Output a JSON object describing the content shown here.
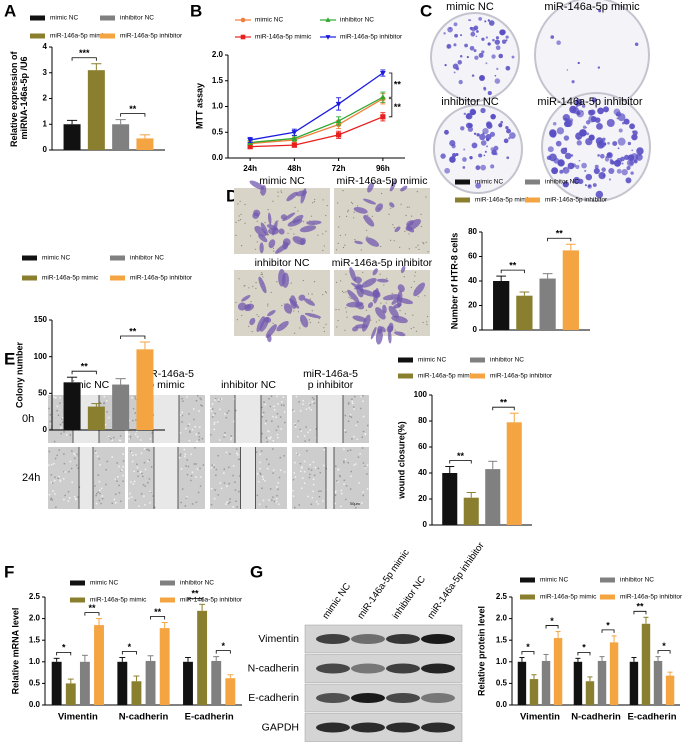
{
  "panel_labels": [
    "A",
    "B",
    "C",
    "D",
    "E",
    "F",
    "G"
  ],
  "chart_data": [
    {
      "type": "bar",
      "ylabel": "Relative expression of miRNA-146a-5p /U6",
      "categories": [
        null
      ],
      "series": [
        {
          "name": "mimic NC",
          "color": "#111111",
          "values": [
            1.0
          ],
          "errors": [
            0.15
          ]
        },
        {
          "name": "miR-146a-5p mimic",
          "color": "#8a7f2f",
          "values": [
            3.1
          ],
          "errors": [
            0.25
          ]
        },
        {
          "name": "inhibitor NC",
          "color": "#808080",
          "values": [
            1.0
          ],
          "errors": [
            0.18
          ]
        },
        {
          "name": "miR-146a-5p inhibitor",
          "color": "#f5a442",
          "values": [
            0.45
          ],
          "errors": [
            0.14
          ]
        }
      ],
      "ylim": [
        0,
        4
      ],
      "yticks": [
        0,
        1,
        2,
        3,
        4
      ],
      "annotations": [
        "***",
        "**"
      ],
      "legend": "top"
    },
    {
      "type": "bar",
      "ylabel": "Colony number",
      "categories": [
        null
      ],
      "series": [
        {
          "name": "mimic NC",
          "color": "#111111",
          "values": [
            65
          ],
          "errors": [
            7
          ]
        },
        {
          "name": "miR-146a-5p mimic",
          "color": "#8a7f2f",
          "values": [
            32
          ],
          "errors": [
            4
          ]
        },
        {
          "name": "inhibitor NC",
          "color": "#808080",
          "values": [
            62
          ],
          "errors": [
            8
          ]
        },
        {
          "name": "miR-146a-5p inhibitor",
          "color": "#f5a442",
          "values": [
            110
          ],
          "errors": [
            10
          ]
        }
      ],
      "ylim": [
        0,
        150
      ],
      "yticks": [
        0,
        50,
        100,
        150
      ],
      "annotations": [
        "**",
        "**"
      ],
      "legend": "top"
    },
    {
      "type": "line",
      "ylabel": "MTT assay",
      "categories": [
        "24h",
        "48h",
        "72h",
        "96h"
      ],
      "series": [
        {
          "name": "mimic NC",
          "color": "#f07d3a",
          "marker": "circle",
          "values": [
            0.28,
            0.35,
            0.65,
            1.15
          ],
          "errors": [
            0.04,
            0.05,
            0.08,
            0.1
          ]
        },
        {
          "name": "miR-146a-5p mimic",
          "color": "#e8201d",
          "marker": "square",
          "values": [
            0.22,
            0.25,
            0.45,
            0.8
          ],
          "errors": [
            0.03,
            0.04,
            0.07,
            0.08
          ]
        },
        {
          "name": "inhibitor NC",
          "color": "#2fa82f",
          "marker": "triangle",
          "values": [
            0.3,
            0.38,
            0.72,
            1.18
          ],
          "errors": [
            0.04,
            0.05,
            0.08,
            0.1
          ]
        },
        {
          "name": "miR-146a-5p inhibitor",
          "color": "#1c1ce0",
          "marker": "triangle-down",
          "values": [
            0.35,
            0.5,
            1.05,
            1.65
          ],
          "errors": [
            0.05,
            0.06,
            0.12,
            0.06
          ]
        }
      ],
      "ylim": [
        0,
        2
      ],
      "yticks": [
        {
          "value": 0,
          "label": "0.0"
        },
        0.5,
        {
          "value": 1,
          "label": "1.0"
        },
        1.5,
        {
          "value": 2,
          "label": "2.0"
        }
      ],
      "annotations": [
        "**",
        "**"
      ],
      "legend": "top"
    },
    {
      "type": "bar",
      "ylabel": "Number of HTR-8 cells",
      "categories": [
        null
      ],
      "series": [
        {
          "name": "mimic NC",
          "color": "#111111",
          "values": [
            40
          ],
          "errors": [
            4
          ]
        },
        {
          "name": "miR-146a-5p mimic",
          "color": "#8a7f2f",
          "values": [
            28
          ],
          "errors": [
            3
          ]
        },
        {
          "name": "inhibitor NC",
          "color": "#808080",
          "values": [
            42
          ],
          "errors": [
            4
          ]
        },
        {
          "name": "miR-146a-5p inhibitor",
          "color": "#f5a442",
          "values": [
            65
          ],
          "errors": [
            5
          ]
        }
      ],
      "ylim": [
        0,
        80
      ],
      "yticks": [
        0,
        20,
        40,
        60,
        80
      ],
      "annotations": [
        "**",
        "**"
      ],
      "legend": "top"
    },
    {
      "type": "bar",
      "ylabel": "wound closure(%)",
      "categories": [
        null
      ],
      "series": [
        {
          "name": "mimic NC",
          "color": "#111111",
          "values": [
            40
          ],
          "errors": [
            5
          ]
        },
        {
          "name": "miR-146a-5p mimic",
          "color": "#8a7f2f",
          "values": [
            21
          ],
          "errors": [
            4
          ]
        },
        {
          "name": "inhibitor NC",
          "color": "#808080",
          "values": [
            43
          ],
          "errors": [
            6
          ]
        },
        {
          "name": "miR-146a-5p inhibitor",
          "color": "#f5a442",
          "values": [
            79
          ],
          "errors": [
            7
          ]
        }
      ],
      "ylim": [
        0,
        100
      ],
      "yticks": [
        0,
        20,
        40,
        60,
        80,
        100
      ],
      "annotations": [
        "**",
        "**"
      ],
      "legend": "top"
    },
    {
      "type": "bar",
      "ylabel": "Relative mRNA level",
      "categories": [
        "Vimentin",
        "N-cadherin",
        "E-cadherin"
      ],
      "series": [
        {
          "name": "mimic NC",
          "color": "#111111",
          "values": [
            1.0,
            1.0,
            1.0
          ],
          "errors": [
            0.08,
            0.1,
            0.1
          ]
        },
        {
          "name": "miR-146a-5p mimic",
          "color": "#8a7f2f",
          "values": [
            0.5,
            0.55,
            2.18
          ],
          "errors": [
            0.1,
            0.12,
            0.15
          ]
        },
        {
          "name": "inhibitor NC",
          "color": "#808080",
          "values": [
            1.0,
            1.02,
            1.02
          ],
          "errors": [
            0.15,
            0.12,
            0.1
          ]
        },
        {
          "name": "miR-146a-5p inhibitor",
          "color": "#f5a442",
          "values": [
            1.85,
            1.78,
            0.62
          ],
          "errors": [
            0.15,
            0.13,
            0.08
          ]
        }
      ],
      "ylim": [
        0,
        2.5
      ],
      "yticks": [
        {
          "value": 0,
          "label": "0.0"
        },
        0.5,
        {
          "value": 1,
          "label": "1.0"
        },
        1.5,
        {
          "value": 2,
          "label": "2.0"
        },
        2.5
      ],
      "annotations": [
        "*",
        "**",
        "*",
        "**",
        "**",
        "*"
      ],
      "legend": "top"
    },
    {
      "type": "bar",
      "ylabel": "Relative protein level",
      "categories": [
        "Vimentin",
        "N-cadherin",
        "E-cadherin"
      ],
      "series": [
        {
          "name": "mimic NC",
          "color": "#111111",
          "values": [
            1.0,
            1.0,
            1.0
          ],
          "errors": [
            0.1,
            0.08,
            0.1
          ]
        },
        {
          "name": "miR-146a-5p mimic",
          "color": "#8a7f2f",
          "values": [
            0.6,
            0.55,
            1.88
          ],
          "errors": [
            0.1,
            0.1,
            0.15
          ]
        },
        {
          "name": "inhibitor NC",
          "color": "#808080",
          "values": [
            1.02,
            1.02,
            1.02
          ],
          "errors": [
            0.15,
            0.1,
            0.1
          ]
        },
        {
          "name": "miR-146a-5p inhibitor",
          "color": "#f5a442",
          "values": [
            1.55,
            1.45,
            0.68
          ],
          "errors": [
            0.15,
            0.15,
            0.08
          ]
        }
      ],
      "ylim": [
        0,
        2.5
      ],
      "yticks": [
        {
          "value": 0,
          "label": "0.0"
        },
        0.5,
        {
          "value": 1,
          "label": "1.0"
        },
        1.5,
        {
          "value": 2,
          "label": "2.0"
        },
        2.5
      ],
      "annotations": [
        "*",
        "*",
        "*",
        "*",
        "**",
        "*"
      ],
      "legend": "top"
    }
  ],
  "images": {
    "C": {
      "labels": [
        "mimic NC",
        "miR-146a-5p mimic",
        "inhibitor NC",
        "miR-146a-5p inhibitor"
      ]
    },
    "D": {
      "labels": [
        "mimic NC",
        "miR-146a-5p mimic",
        "inhibitor NC",
        "miR-146a-5p inhibitor"
      ]
    },
    "E": {
      "columns": [
        "mimic NC",
        "miR-146a-5p mimic",
        "inhibitor NC",
        "miR-146a-5p inhibitor"
      ],
      "rows": [
        "0h",
        "24h"
      ],
      "scale": "50μm"
    },
    "G": {
      "lanes": [
        "mimic NC",
        "miR-146a-5p mimic",
        "inhibitor NC",
        "miR-146a-5p inhibitor"
      ],
      "rows": [
        "Vimentin",
        "N-cadherin",
        "E-cadherin",
        "GAPDH"
      ]
    }
  }
}
